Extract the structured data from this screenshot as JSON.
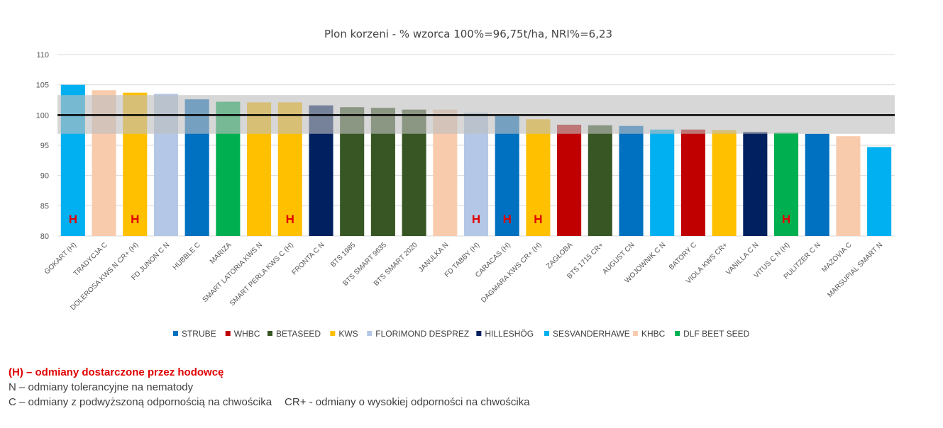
{
  "chart_data": {
    "type": "bar",
    "title": "Plon korzeni - % wzorca 100%=96,75t/ha, NRI%=6,23",
    "ylim": [
      80,
      110
    ],
    "yticks": [
      80,
      85,
      90,
      95,
      100,
      105,
      110
    ],
    "reference_line": 100,
    "nri_band": [
      96.9,
      103.3
    ],
    "grid": true,
    "legend_position": "bottom",
    "categories": [
      "GOKART (H)",
      "TRADYCJA C",
      "DOLEROSA KWS N CR+ (H)",
      "FD JUNON C N",
      "HUBBLE C",
      "MARIZA",
      "SMART LATORIA KWS N",
      "SMART PERLA KWS C (H)",
      "FRONTA C N",
      "BTS 1985",
      "BTS SMART 9635",
      "BTS SMART 2020",
      "JANULKA N",
      "FD TABBY (H)",
      "CARACAS (H)",
      "DAGMARA KWS CR+ (H)",
      "ZAGŁOBA",
      "BTS 1715 CR+",
      "AUGUST CN",
      "WOJOWNIK C N",
      "BATORY C",
      "VIOLA KWS CR+",
      "VANILLA C N",
      "VITUS C N (H)",
      "PULITZER C N",
      "MAZOVIA C",
      "MARSUPIAL SMART N"
    ],
    "values": [
      105.0,
      104.1,
      103.7,
      103.5,
      102.6,
      102.2,
      102.1,
      102.1,
      101.6,
      101.3,
      101.2,
      100.9,
      100.9,
      100.4,
      99.8,
      99.3,
      98.4,
      98.3,
      98.2,
      97.6,
      97.6,
      97.5,
      97.2,
      97.1,
      96.9,
      96.5,
      94.7
    ],
    "breeders": [
      "SESVANDERHAWE",
      "KHBC",
      "KWS",
      "FLORIMOND DESPREZ",
      "STRUBE",
      "DLF BEET SEED",
      "KWS",
      "KWS",
      "HILLESHÖG",
      "BETASEED",
      "BETASEED",
      "BETASEED",
      "KHBC",
      "FLORIMOND DESPREZ",
      "STRUBE",
      "KWS",
      "WHBC",
      "BETASEED",
      "STRUBE",
      "SESVANDERHAWE",
      "WHBC",
      "KWS",
      "HILLESHÖG",
      "DLF BEET SEED",
      "STRUBE",
      "KHBC",
      "SESVANDERHAWE"
    ],
    "h_marker": "H",
    "h_marked": [
      true,
      false,
      true,
      false,
      false,
      false,
      false,
      true,
      false,
      false,
      false,
      false,
      false,
      true,
      true,
      true,
      false,
      false,
      false,
      false,
      false,
      false,
      false,
      true,
      false,
      false,
      false
    ],
    "legend": [
      {
        "name": "STRUBE",
        "color": "#0070c0"
      },
      {
        "name": "WHBC",
        "color": "#c00000"
      },
      {
        "name": "BETASEED",
        "color": "#375623"
      },
      {
        "name": "KWS",
        "color": "#ffc000"
      },
      {
        "name": "FLORIMOND DESPREZ",
        "color": "#b4c7e7"
      },
      {
        "name": "HILLESHÖG",
        "color": "#002060"
      },
      {
        "name": "SESVANDERHAWE",
        "color": "#00b0f0"
      },
      {
        "name": "KHBC",
        "color": "#f8cbad"
      },
      {
        "name": "DLF BEET SEED",
        "color": "#00b050"
      }
    ]
  },
  "notes": {
    "line1": "(H) – odmiany dostarczone przez hodowcę",
    "line2": "N – odmiany tolerancyjne na nematody",
    "line3a": "C – odmiany z podwyższoną odpornością na chwościka",
    "line3b": "CR+ - odmiany o wysokiej odporności na chwościka"
  }
}
